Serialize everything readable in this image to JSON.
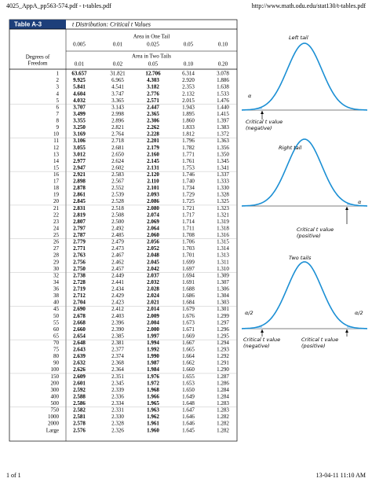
{
  "header": {
    "left": "4025_AppA_pp563-574.pdf - t-tables.pdf",
    "right": "http://www.math.odu.edu/stat130/t-tables.pdf"
  },
  "footer": {
    "left": "1 of 1",
    "right": "13-04-11 11:10 AM"
  },
  "table": {
    "label": "Table A-3",
    "title": "t Distribution: Critical t Values",
    "one_tail_label": "Area in One Tail",
    "two_tails_label": "Area in Two Tails",
    "df_label": [
      "Degrees of",
      "Freedom"
    ],
    "one_tail": [
      "0.005",
      "0.01",
      "0.025",
      "0.05",
      "0.10"
    ],
    "two_tails": [
      "0.01",
      "0.02",
      "0.05",
      "0.10",
      "0.20"
    ],
    "rows": [
      [
        "1",
        "63.657",
        "31.821",
        "12.706",
        "6.314",
        "3.078"
      ],
      [
        "2",
        "9.925",
        "6.965",
        "4.303",
        "2.920",
        "1.886"
      ],
      [
        "3",
        "5.841",
        "4.541",
        "3.182",
        "2.353",
        "1.638"
      ],
      [
        "4",
        "4.604",
        "3.747",
        "2.776",
        "2.132",
        "1.533"
      ],
      [
        "5",
        "4.032",
        "3.365",
        "2.571",
        "2.015",
        "1.476"
      ],
      [
        "6",
        "3.707",
        "3.143",
        "2.447",
        "1.943",
        "1.440"
      ],
      [
        "7",
        "3.499",
        "2.998",
        "2.365",
        "1.895",
        "1.415"
      ],
      [
        "8",
        "3.355",
        "2.896",
        "2.306",
        "1.860",
        "1.397"
      ],
      [
        "9",
        "3.250",
        "2.821",
        "2.262",
        "1.833",
        "1.383"
      ],
      [
        "10",
        "3.169",
        "2.764",
        "2.228",
        "1.812",
        "1.372"
      ],
      [
        "11",
        "3.106",
        "2.718",
        "2.201",
        "1.796",
        "1.363"
      ],
      [
        "12",
        "3.055",
        "2.681",
        "2.179",
        "1.782",
        "1.356"
      ],
      [
        "13",
        "3.012",
        "2.650",
        "2.160",
        "1.771",
        "1.350"
      ],
      [
        "14",
        "2.977",
        "2.624",
        "2.145",
        "1.761",
        "1.345"
      ],
      [
        "15",
        "2.947",
        "2.602",
        "2.131",
        "1.753",
        "1.341"
      ],
      [
        "16",
        "2.921",
        "2.583",
        "2.120",
        "1.746",
        "1.337"
      ],
      [
        "17",
        "2.898",
        "2.567",
        "2.110",
        "1.740",
        "1.333"
      ],
      [
        "18",
        "2.878",
        "2.552",
        "2.101",
        "1.734",
        "1.330"
      ],
      [
        "19",
        "2.861",
        "2.539",
        "2.093",
        "1.729",
        "1.328"
      ],
      [
        "20",
        "2.845",
        "2.528",
        "2.086",
        "1.725",
        "1.325"
      ],
      [
        "21",
        "2.831",
        "2.518",
        "2.080",
        "1.721",
        "1.323"
      ],
      [
        "22",
        "2.819",
        "2.508",
        "2.074",
        "1.717",
        "1.321"
      ],
      [
        "23",
        "2.807",
        "2.500",
        "2.069",
        "1.714",
        "1.319"
      ],
      [
        "24",
        "2.797",
        "2.492",
        "2.064",
        "1.711",
        "1.318"
      ],
      [
        "25",
        "2.787",
        "2.485",
        "2.060",
        "1.708",
        "1.316"
      ],
      [
        "26",
        "2.779",
        "2.479",
        "2.056",
        "1.706",
        "1.315"
      ],
      [
        "27",
        "2.771",
        "2.473",
        "2.052",
        "1.703",
        "1.314"
      ],
      [
        "28",
        "2.763",
        "2.467",
        "2.048",
        "1.701",
        "1.313"
      ],
      [
        "29",
        "2.756",
        "2.462",
        "2.045",
        "1.699",
        "1.311"
      ],
      [
        "30",
        "2.750",
        "2.457",
        "2.042",
        "1.697",
        "1.310"
      ],
      [
        "32",
        "2.738",
        "2.449",
        "2.037",
        "1.694",
        "1.309"
      ],
      [
        "34",
        "2.728",
        "2.441",
        "2.032",
        "1.691",
        "1.307"
      ],
      [
        "36",
        "2.719",
        "2.434",
        "2.028",
        "1.688",
        "1.306"
      ],
      [
        "38",
        "2.712",
        "2.429",
        "2.024",
        "1.686",
        "1.304"
      ],
      [
        "40",
        "2.704",
        "2.423",
        "2.021",
        "1.684",
        "1.303"
      ],
      [
        "45",
        "2.690",
        "2.412",
        "2.014",
        "1.679",
        "1.301"
      ],
      [
        "50",
        "2.678",
        "2.403",
        "2.009",
        "1.676",
        "1.299"
      ],
      [
        "55",
        "2.668",
        "2.396",
        "2.004",
        "1.673",
        "1.297"
      ],
      [
        "60",
        "2.660",
        "2.390",
        "2.000",
        "1.671",
        "1.296"
      ],
      [
        "65",
        "2.654",
        "2.385",
        "1.997",
        "1.669",
        "1.295"
      ],
      [
        "70",
        "2.648",
        "2.381",
        "1.994",
        "1.667",
        "1.294"
      ],
      [
        "75",
        "2.643",
        "2.377",
        "1.992",
        "1.665",
        "1.293"
      ],
      [
        "80",
        "2.639",
        "2.374",
        "1.990",
        "1.664",
        "1.292"
      ],
      [
        "90",
        "2.632",
        "2.368",
        "1.987",
        "1.662",
        "1.291"
      ],
      [
        "100",
        "2.626",
        "2.364",
        "1.984",
        "1.660",
        "1.290"
      ],
      [
        "150",
        "2.609",
        "2.351",
        "1.976",
        "1.655",
        "1.287"
      ],
      [
        "200",
        "2.601",
        "2.345",
        "1.972",
        "1.653",
        "1.286"
      ],
      [
        "300",
        "2.592",
        "2.339",
        "1.968",
        "1.650",
        "1.284"
      ],
      [
        "400",
        "2.588",
        "2.336",
        "1.966",
        "1.649",
        "1.284"
      ],
      [
        "500",
        "2.586",
        "2.334",
        "1.965",
        "1.648",
        "1.283"
      ],
      [
        "750",
        "2.582",
        "2.331",
        "1.963",
        "1.647",
        "1.283"
      ],
      [
        "1000",
        "2.581",
        "2.330",
        "1.962",
        "1.646",
        "1.282"
      ],
      [
        "2000",
        "2.578",
        "2.328",
        "1.961",
        "1.646",
        "1.282"
      ],
      [
        "Large",
        "2.576",
        "2.326",
        "1.960",
        "1.645",
        "1.282"
      ]
    ]
  },
  "diagrams": {
    "left": {
      "title": "Left tail",
      "alpha": "α",
      "critical": [
        "Critical t value",
        "(negative)"
      ]
    },
    "right": {
      "title": "Right tail",
      "alpha": "α",
      "critical": [
        "Critical t value",
        "(positive)"
      ]
    },
    "two": {
      "title": "Two tails",
      "alpha_left": "α/2",
      "alpha_right": "α/2",
      "critical_left": [
        "Critical t value",
        "(negative)"
      ],
      "critical_right": [
        "Critical t value",
        "(positive)"
      ]
    }
  }
}
